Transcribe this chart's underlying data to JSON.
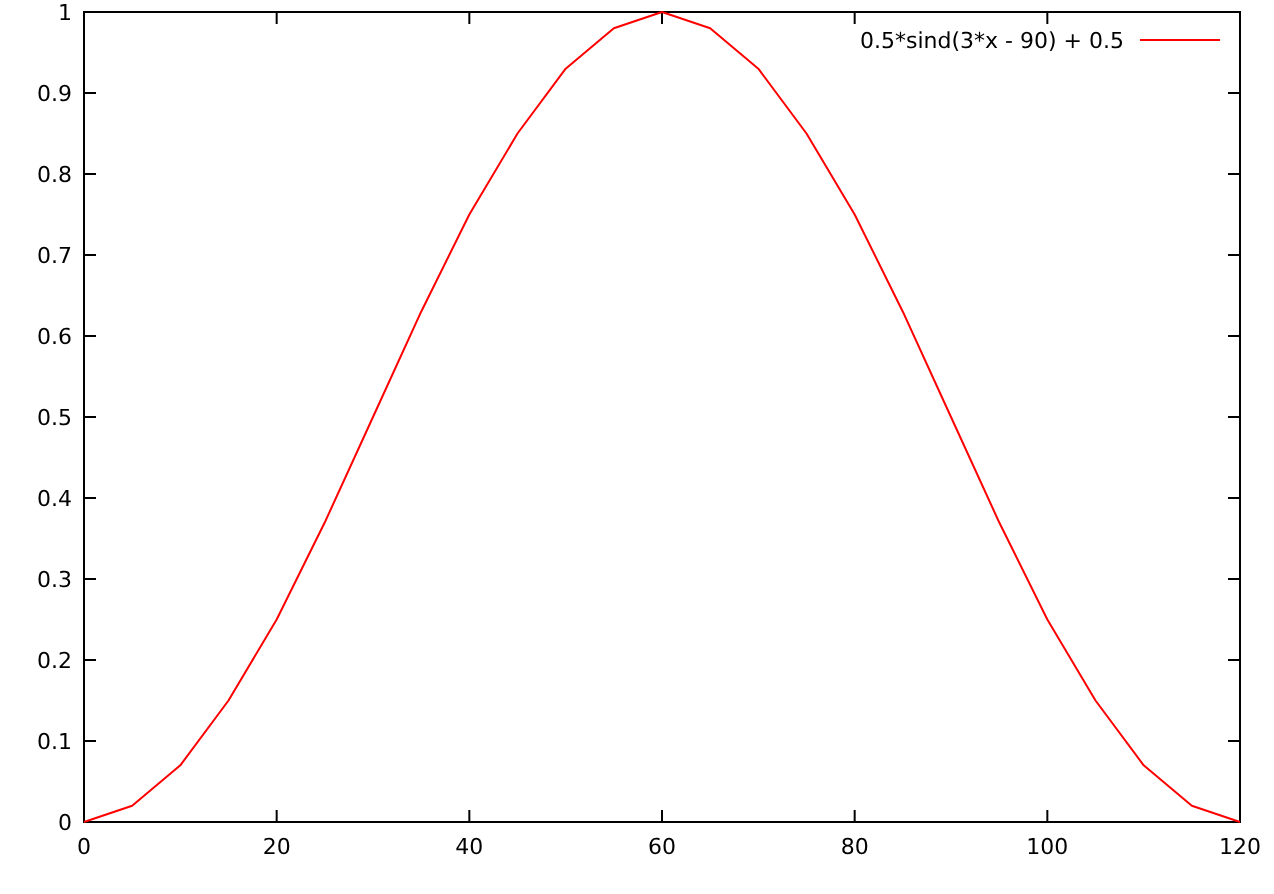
{
  "chart_data": {
    "type": "line",
    "x": [
      0,
      5,
      10,
      15,
      20,
      25,
      30,
      35,
      40,
      45,
      50,
      55,
      60,
      65,
      70,
      75,
      80,
      85,
      90,
      95,
      100,
      105,
      110,
      115,
      120
    ],
    "series": [
      {
        "name": "0.5*sind(3*x - 90) + 0.5",
        "color": "#ff0000",
        "values": [
          0,
          0.02,
          0.07,
          0.15,
          0.25,
          0.37,
          0.5,
          0.63,
          0.75,
          0.85,
          0.93,
          0.98,
          1,
          0.98,
          0.93,
          0.85,
          0.75,
          0.63,
          0.5,
          0.37,
          0.25,
          0.15,
          0.07,
          0.02,
          0
        ]
      }
    ],
    "xlim": [
      0,
      120
    ],
    "xticks": [
      0,
      20,
      40,
      60,
      80,
      100,
      120
    ],
    "ylim": [
      0,
      1
    ],
    "yticks": [
      0,
      0.1,
      0.2,
      0.3,
      0.4,
      0.5,
      0.6,
      0.7,
      0.8,
      0.9,
      1
    ],
    "legend": "top right",
    "grid": false,
    "marker": "none",
    "line_style": "solid"
  }
}
